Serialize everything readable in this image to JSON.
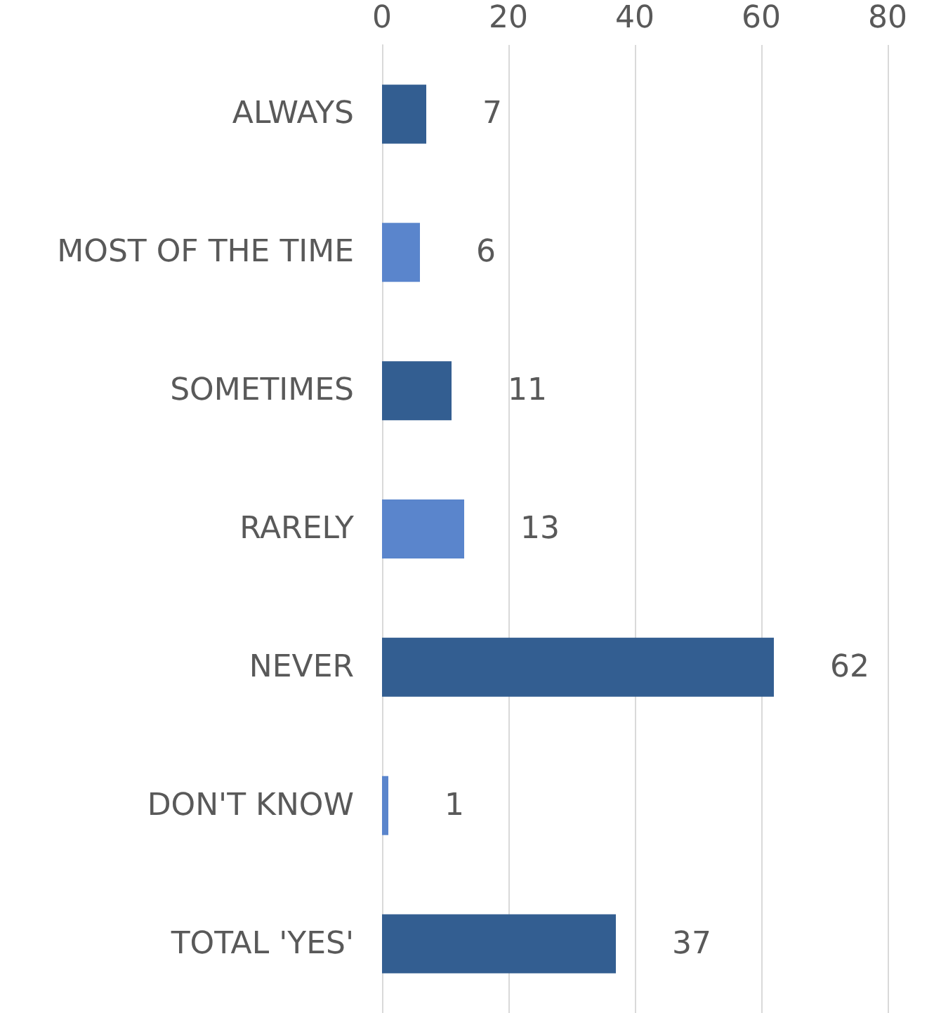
{
  "chart_data": {
    "type": "bar",
    "orientation": "horizontal",
    "categories": [
      "ALWAYS",
      "MOST OF THE TIME",
      "SOMETIMES",
      "RARELY",
      "NEVER",
      "DON'T KNOW",
      "TOTAL 'YES'"
    ],
    "values": [
      7,
      6,
      11,
      13,
      62,
      1,
      37
    ],
    "colors": [
      "#335e91",
      "#5a85cc",
      "#335e91",
      "#5a85cc",
      "#335e91",
      "#5a85cc",
      "#335e91"
    ],
    "xlim": [
      0,
      80
    ],
    "xticks": [
      0,
      20,
      40,
      60,
      80
    ],
    "grid": "x",
    "data_labels": true
  }
}
